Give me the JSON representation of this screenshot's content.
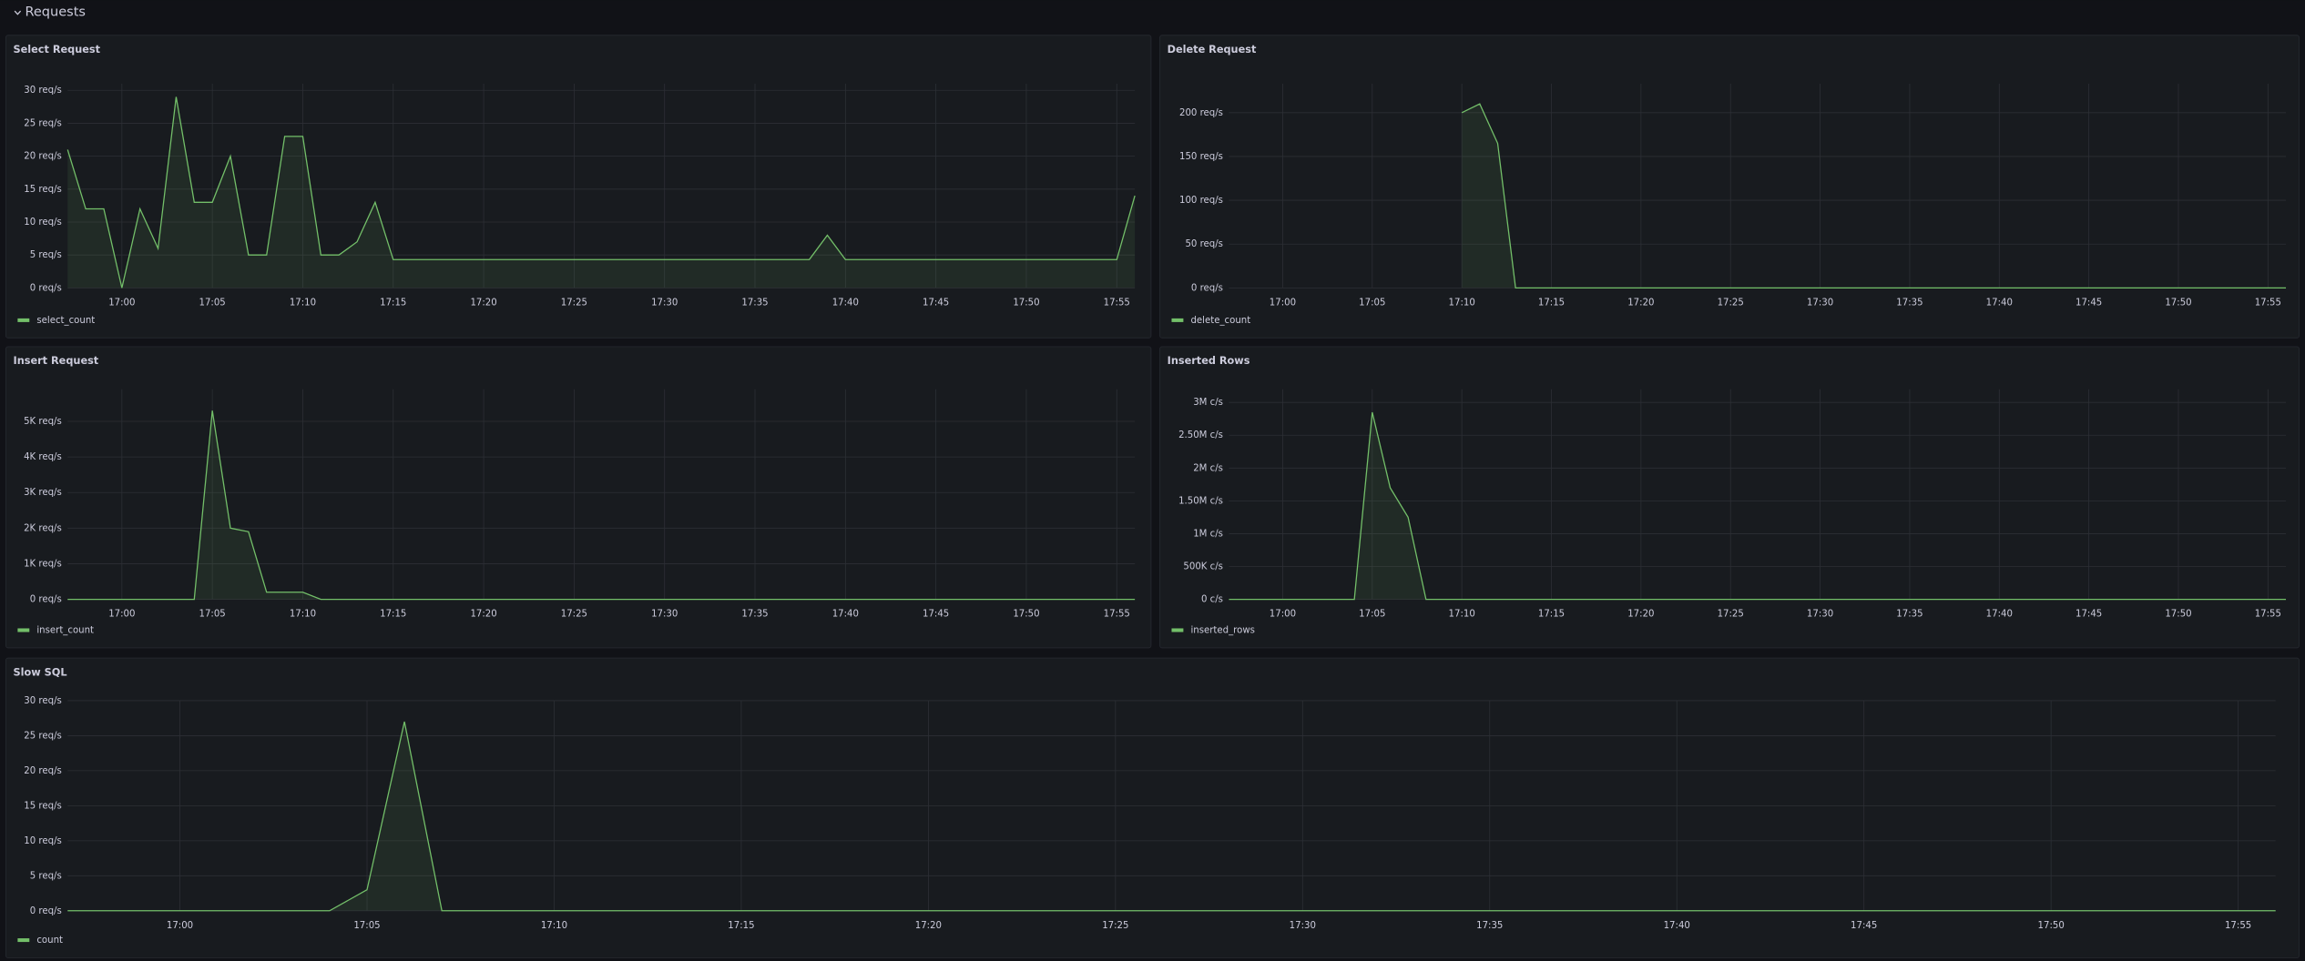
{
  "section_title": "Requests",
  "chart_data": [
    {
      "type": "line",
      "title": "Select Request",
      "x": [
        "16:57",
        "16:58",
        "16:59",
        "17:00",
        "17:01",
        "17:02",
        "17:03",
        "17:04",
        "17:05",
        "17:06",
        "17:07",
        "17:08",
        "17:09",
        "17:10",
        "17:11",
        "17:12",
        "17:13",
        "17:14",
        "17:15",
        "17:16",
        "17:17",
        "17:18",
        "17:19",
        "17:20",
        "17:21",
        "17:22",
        "17:23",
        "17:24",
        "17:25",
        "17:26",
        "17:27",
        "17:28",
        "17:29",
        "17:30",
        "17:31",
        "17:32",
        "17:33",
        "17:34",
        "17:35",
        "17:36",
        "17:37",
        "17:38",
        "17:39",
        "17:40",
        "17:41",
        "17:42",
        "17:43",
        "17:44",
        "17:45",
        "17:46",
        "17:47",
        "17:48",
        "17:49",
        "17:50",
        "17:51",
        "17:52",
        "17:53",
        "17:54",
        "17:55",
        "17:56"
      ],
      "series": [
        {
          "name": "select_count",
          "color": "#73bf69",
          "values": [
            21,
            12,
            12,
            0,
            12,
            6,
            29,
            13,
            13,
            20,
            5,
            5,
            23,
            23,
            5,
            5,
            7,
            13,
            4.3,
            4.3,
            4.3,
            4.3,
            4.3,
            4.3,
            4.3,
            4.3,
            4.3,
            4.3,
            4.3,
            4.3,
            4.3,
            4.3,
            4.3,
            4.3,
            4.3,
            4.3,
            4.3,
            4.3,
            4.3,
            4.3,
            4.3,
            4.3,
            8,
            4.3,
            4.3,
            4.3,
            4.3,
            4.3,
            4.3,
            4.3,
            4.3,
            4.3,
            4.3,
            4.3,
            4.3,
            4.3,
            4.3,
            4.3,
            4.3,
            14
          ]
        }
      ],
      "xlim": [
        "16:57",
        "17:56"
      ],
      "xticks": [
        "17:00",
        "17:05",
        "17:10",
        "17:15",
        "17:20",
        "17:25",
        "17:30",
        "17:35",
        "17:40",
        "17:45",
        "17:50",
        "17:55"
      ],
      "ylim": [
        0,
        31
      ],
      "yticks": [
        {
          "value": 0,
          "label": "0 req/s"
        },
        {
          "value": 5,
          "label": "5 req/s"
        },
        {
          "value": 10,
          "label": "10 req/s"
        },
        {
          "value": 15,
          "label": "15 req/s"
        },
        {
          "value": 20,
          "label": "20 req/s"
        },
        {
          "value": 25,
          "label": "25 req/s"
        },
        {
          "value": 30,
          "label": "30 req/s"
        }
      ],
      "grid": true
    },
    {
      "type": "line",
      "title": "Delete Request",
      "x": [
        "16:57",
        "16:58",
        "16:59",
        "17:00",
        "17:01",
        "17:02",
        "17:03",
        "17:04",
        "17:05",
        "17:06",
        "17:07",
        "17:08",
        "17:09",
        "17:10",
        "17:11",
        "17:12",
        "17:13",
        "17:14",
        "17:15",
        "17:16",
        "17:17",
        "17:18",
        "17:19",
        "17:20",
        "17:21",
        "17:22",
        "17:23",
        "17:24",
        "17:25",
        "17:26",
        "17:27",
        "17:28",
        "17:29",
        "17:30",
        "17:31",
        "17:32",
        "17:33",
        "17:34",
        "17:35",
        "17:36",
        "17:37",
        "17:38",
        "17:39",
        "17:40",
        "17:41",
        "17:42",
        "17:43",
        "17:44",
        "17:45",
        "17:46",
        "17:47",
        "17:48",
        "17:49",
        "17:50",
        "17:51",
        "17:52",
        "17:53",
        "17:54",
        "17:55",
        "17:56"
      ],
      "series": [
        {
          "name": "delete_count",
          "color": "#73bf69",
          "values": [
            null,
            null,
            null,
            null,
            null,
            null,
            null,
            null,
            null,
            null,
            null,
            null,
            null,
            200,
            210,
            165,
            0,
            0,
            0,
            0,
            0,
            0,
            0,
            0,
            0,
            0,
            0,
            0,
            0,
            0,
            0,
            0,
            0,
            0,
            0,
            0,
            0,
            0,
            0,
            0,
            0,
            0,
            0,
            0,
            0,
            0,
            0,
            0,
            0,
            0,
            0,
            0,
            0,
            0,
            0,
            0,
            0,
            0,
            0,
            0
          ]
        }
      ],
      "xlim": [
        "16:57",
        "17:56"
      ],
      "xticks": [
        "17:00",
        "17:05",
        "17:10",
        "17:15",
        "17:20",
        "17:25",
        "17:30",
        "17:35",
        "17:40",
        "17:45",
        "17:50",
        "17:55"
      ],
      "ylim": [
        0,
        233
      ],
      "yticks": [
        {
          "value": 0,
          "label": "0 req/s"
        },
        {
          "value": 50,
          "label": "50 req/s"
        },
        {
          "value": 100,
          "label": "100 req/s"
        },
        {
          "value": 150,
          "label": "150 req/s"
        },
        {
          "value": 200,
          "label": "200 req/s"
        }
      ],
      "grid": true
    },
    {
      "type": "line",
      "title": "Insert Request",
      "x": [
        "16:57",
        "16:58",
        "16:59",
        "17:00",
        "17:01",
        "17:02",
        "17:03",
        "17:04",
        "17:05",
        "17:06",
        "17:07",
        "17:08",
        "17:09",
        "17:10",
        "17:11",
        "17:12",
        "17:13",
        "17:14",
        "17:15",
        "17:16",
        "17:17",
        "17:18",
        "17:19",
        "17:20",
        "17:21",
        "17:22",
        "17:23",
        "17:24",
        "17:25",
        "17:26",
        "17:27",
        "17:28",
        "17:29",
        "17:30",
        "17:31",
        "17:32",
        "17:33",
        "17:34",
        "17:35",
        "17:36",
        "17:37",
        "17:38",
        "17:39",
        "17:40",
        "17:41",
        "17:42",
        "17:43",
        "17:44",
        "17:45",
        "17:46",
        "17:47",
        "17:48",
        "17:49",
        "17:50",
        "17:51",
        "17:52",
        "17:53",
        "17:54",
        "17:55",
        "17:56"
      ],
      "series": [
        {
          "name": "insert_count",
          "color": "#73bf69",
          "values": [
            0,
            0,
            0,
            0,
            0,
            0,
            0,
            0,
            5300,
            2000,
            1900,
            200,
            200,
            200,
            0,
            0,
            0,
            0,
            0,
            0,
            0,
            0,
            0,
            0,
            0,
            0,
            0,
            0,
            0,
            0,
            0,
            0,
            0,
            0,
            0,
            0,
            0,
            0,
            0,
            0,
            0,
            0,
            0,
            0,
            0,
            0,
            0,
            0,
            0,
            0,
            0,
            0,
            0,
            0,
            0,
            0,
            0,
            0,
            0,
            0
          ]
        }
      ],
      "xlim": [
        "16:57",
        "17:56"
      ],
      "xticks": [
        "17:00",
        "17:05",
        "17:10",
        "17:15",
        "17:20",
        "17:25",
        "17:30",
        "17:35",
        "17:40",
        "17:45",
        "17:50",
        "17:55"
      ],
      "ylim": [
        0,
        5900
      ],
      "yticks": [
        {
          "value": 0,
          "label": "0 req/s"
        },
        {
          "value": 1000,
          "label": "1K req/s"
        },
        {
          "value": 2000,
          "label": "2K req/s"
        },
        {
          "value": 3000,
          "label": "3K req/s"
        },
        {
          "value": 4000,
          "label": "4K req/s"
        },
        {
          "value": 5000,
          "label": "5K req/s"
        }
      ],
      "grid": true
    },
    {
      "type": "line",
      "title": "Inserted Rows",
      "x": [
        "16:57",
        "16:58",
        "16:59",
        "17:00",
        "17:01",
        "17:02",
        "17:03",
        "17:04",
        "17:05",
        "17:06",
        "17:07",
        "17:08",
        "17:09",
        "17:10",
        "17:11",
        "17:12",
        "17:13",
        "17:14",
        "17:15",
        "17:16",
        "17:17",
        "17:18",
        "17:19",
        "17:20",
        "17:21",
        "17:22",
        "17:23",
        "17:24",
        "17:25",
        "17:26",
        "17:27",
        "17:28",
        "17:29",
        "17:30",
        "17:31",
        "17:32",
        "17:33",
        "17:34",
        "17:35",
        "17:36",
        "17:37",
        "17:38",
        "17:39",
        "17:40",
        "17:41",
        "17:42",
        "17:43",
        "17:44",
        "17:45",
        "17:46",
        "17:47",
        "17:48",
        "17:49",
        "17:50",
        "17:51",
        "17:52",
        "17:53",
        "17:54",
        "17:55",
        "17:56"
      ],
      "series": [
        {
          "name": "inserted_rows",
          "color": "#73bf69",
          "values": [
            0,
            0,
            0,
            0,
            0,
            0,
            0,
            0,
            2850000,
            1700000,
            1250000,
            0,
            0,
            0,
            0,
            0,
            0,
            0,
            0,
            0,
            0,
            0,
            0,
            0,
            0,
            0,
            0,
            0,
            0,
            0,
            0,
            0,
            0,
            0,
            0,
            0,
            0,
            0,
            0,
            0,
            0,
            0,
            0,
            0,
            0,
            0,
            0,
            0,
            0,
            0,
            0,
            0,
            0,
            0,
            0,
            0,
            0,
            0,
            0,
            0
          ]
        }
      ],
      "xlim": [
        "16:57",
        "17:56"
      ],
      "xticks": [
        "17:00",
        "17:05",
        "17:10",
        "17:15",
        "17:20",
        "17:25",
        "17:30",
        "17:35",
        "17:40",
        "17:45",
        "17:50",
        "17:55"
      ],
      "ylim": [
        0,
        3200000
      ],
      "yticks": [
        {
          "value": 0,
          "label": "0 c/s"
        },
        {
          "value": 500000,
          "label": "500K c/s"
        },
        {
          "value": 1000000,
          "label": "1M c/s"
        },
        {
          "value": 1500000,
          "label": "1.50M c/s"
        },
        {
          "value": 2000000,
          "label": "2M c/s"
        },
        {
          "value": 2500000,
          "label": "2.50M c/s"
        },
        {
          "value": 3000000,
          "label": "3M c/s"
        }
      ],
      "grid": true
    },
    {
      "type": "line",
      "title": "Slow SQL",
      "x": [
        "16:57",
        "16:58",
        "16:59",
        "17:00",
        "17:01",
        "17:02",
        "17:03",
        "17:04",
        "17:05",
        "17:06",
        "17:07",
        "17:08",
        "17:09",
        "17:10",
        "17:11",
        "17:12",
        "17:13",
        "17:14",
        "17:15",
        "17:16",
        "17:17",
        "17:18",
        "17:19",
        "17:20",
        "17:21",
        "17:22",
        "17:23",
        "17:24",
        "17:25",
        "17:26",
        "17:27",
        "17:28",
        "17:29",
        "17:30",
        "17:31",
        "17:32",
        "17:33",
        "17:34",
        "17:35",
        "17:36",
        "17:37",
        "17:38",
        "17:39",
        "17:40",
        "17:41",
        "17:42",
        "17:43",
        "17:44",
        "17:45",
        "17:46",
        "17:47",
        "17:48",
        "17:49",
        "17:50",
        "17:51",
        "17:52",
        "17:53",
        "17:54",
        "17:55",
        "17:56"
      ],
      "series": [
        {
          "name": "count",
          "color": "#73bf69",
          "values": [
            0,
            0,
            0,
            0,
            0,
            0,
            0,
            0,
            3,
            27,
            0,
            0,
            0,
            0,
            0,
            0,
            0,
            0,
            0,
            0,
            0,
            0,
            0,
            0,
            0,
            0,
            0,
            0,
            0,
            0,
            0,
            0,
            0,
            0,
            0,
            0,
            0,
            0,
            0,
            0,
            0,
            0,
            0,
            0,
            0,
            0,
            0,
            0,
            0,
            0,
            0,
            0,
            0,
            0,
            0,
            0,
            0,
            0,
            0,
            0
          ]
        }
      ],
      "xlim": [
        "16:57",
        "17:56"
      ],
      "xticks": [
        "17:00",
        "17:05",
        "17:10",
        "17:15",
        "17:20",
        "17:25",
        "17:30",
        "17:35",
        "17:40",
        "17:45",
        "17:50",
        "17:55"
      ],
      "ylim": [
        0,
        30
      ],
      "yticks": [
        {
          "value": 0,
          "label": "0 req/s"
        },
        {
          "value": 5,
          "label": "5 req/s"
        },
        {
          "value": 10,
          "label": "10 req/s"
        },
        {
          "value": 15,
          "label": "15 req/s"
        },
        {
          "value": 20,
          "label": "20 req/s"
        },
        {
          "value": 25,
          "label": "25 req/s"
        },
        {
          "value": 30,
          "label": "30 req/s"
        }
      ],
      "grid": true
    }
  ]
}
